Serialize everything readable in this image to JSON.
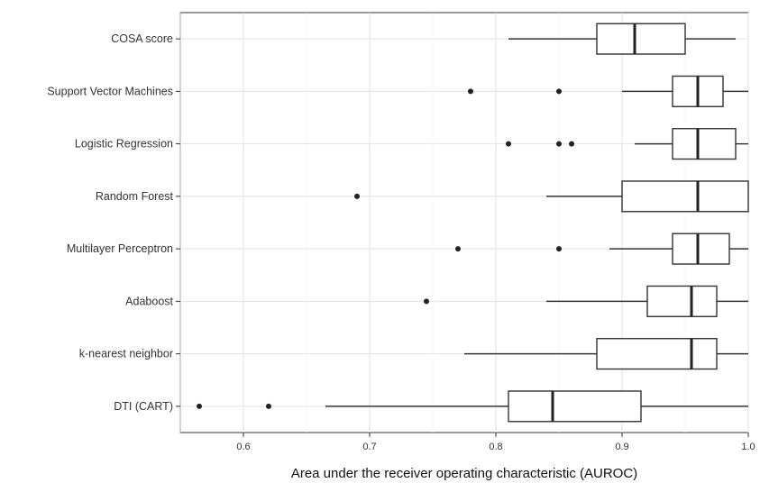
{
  "chart_data": {
    "type": "boxplot",
    "orientation": "horizontal",
    "xlabel": "Area under the receiver operating characteristic (AUROC)",
    "xlim": [
      0.55,
      1.0
    ],
    "xticks": [
      0.6,
      0.7,
      0.8,
      0.9,
      1.0
    ],
    "xtick_labels": [
      "0.6",
      "0.7",
      "0.8",
      "0.9",
      "1.0"
    ],
    "grid": true,
    "categories": [
      {
        "name": "COSA score",
        "whisker_low": 0.81,
        "q1": 0.88,
        "median": 0.91,
        "q3": 0.95,
        "whisker_high": 0.99,
        "outliers": []
      },
      {
        "name": "Support Vector Machines",
        "whisker_low": 0.9,
        "q1": 0.94,
        "median": 0.96,
        "q3": 0.98,
        "whisker_high": 1.0,
        "outliers": [
          0.78,
          0.85
        ]
      },
      {
        "name": "Logistic Regression",
        "whisker_low": 0.91,
        "q1": 0.94,
        "median": 0.96,
        "q3": 0.99,
        "whisker_high": 1.0,
        "outliers": [
          0.81,
          0.85,
          0.86
        ]
      },
      {
        "name": "Random Forest",
        "whisker_low": 0.84,
        "q1": 0.9,
        "median": 0.96,
        "q3": 1.0,
        "whisker_high": 1.0,
        "outliers": [
          0.69
        ]
      },
      {
        "name": "Multilayer Perceptron",
        "whisker_low": 0.89,
        "q1": 0.94,
        "median": 0.96,
        "q3": 0.985,
        "whisker_high": 1.0,
        "outliers": [
          0.77,
          0.85
        ]
      },
      {
        "name": "Adaboost",
        "whisker_low": 0.84,
        "q1": 0.92,
        "median": 0.955,
        "q3": 0.975,
        "whisker_high": 1.0,
        "outliers": [
          0.745
        ]
      },
      {
        "name": "k-nearest neighbor",
        "whisker_low": 0.775,
        "q1": 0.88,
        "median": 0.955,
        "q3": 0.975,
        "whisker_high": 1.0,
        "outliers": []
      },
      {
        "name": "DTI (CART)",
        "whisker_low": 0.665,
        "q1": 0.81,
        "median": 0.845,
        "q3": 0.915,
        "whisker_high": 1.0,
        "outliers": [
          0.565,
          0.62
        ]
      }
    ]
  }
}
